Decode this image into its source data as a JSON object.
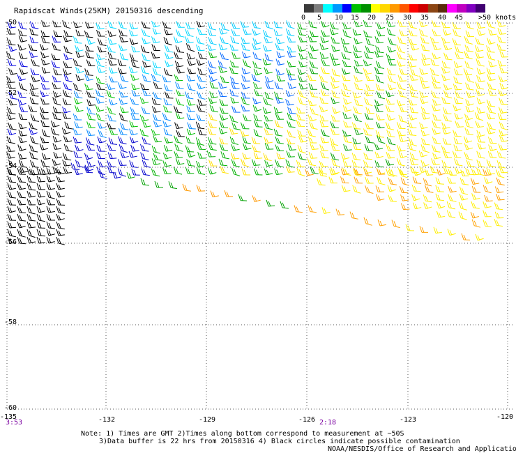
{
  "title": "Rapidscat Winds(25KM) 20150316 descending",
  "legend": {
    "unit_label": ">50 knots",
    "colors": [
      "#3a3a3a",
      "#7d7d7d",
      "#00ffff",
      "#0099ff",
      "#0000ff",
      "#00c000",
      "#009000",
      "#ffff00",
      "#ffd700",
      "#ff9900",
      "#ff5500",
      "#ff0000",
      "#cc0000",
      "#8b4513",
      "#5a2a0a",
      "#ff00ff",
      "#c000c0",
      "#8000c0",
      "#400070"
    ],
    "ticks": [
      "0",
      "5",
      "10",
      "15",
      "20",
      "25",
      "30",
      "35",
      "40",
      "45",
      ">50 knots"
    ]
  },
  "axes": {
    "lon_ticks": [
      "-135",
      "-132",
      "-129",
      "-126",
      "-123",
      "-120"
    ],
    "lat_ticks": [
      "-50",
      "-52",
      "-54",
      "-56",
      "-58",
      "-60"
    ]
  },
  "time_labels": [
    "3:53",
    "2:18"
  ],
  "notes": {
    "line1": "Note: 1) Times are GMT 2)Times along bottom correspond to measurement at ~50S",
    "line2": "3)Data buffer is 22 hrs from 20150316 4) Black circles indicate possible contamination",
    "credit": "NOAA/NESDIS/Office of Research and Applications"
  }
}
